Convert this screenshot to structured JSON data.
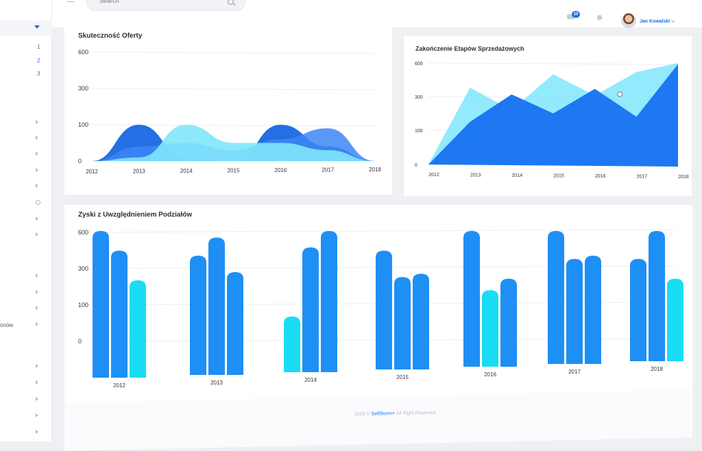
{
  "sidebar": {
    "sub_items": [
      "1",
      "2",
      "3"
    ],
    "partial_label": "onów"
  },
  "topbar": {
    "search_placeholder": "Search",
    "mail_count": "10",
    "user_name": "Jan Kowalski"
  },
  "colors": {
    "accent": "#1e6ff0",
    "bar_blue": "#1e8ff5",
    "bar_cyan": "#19dcf5",
    "area_cyan": "#7fe6fb",
    "area_deep": "#0b5fe0"
  },
  "chart_data": [
    {
      "type": "area",
      "title": "Skuteczność Oferty",
      "x": [
        "2012",
        "2013",
        "2014",
        "2015",
        "2016",
        "2017",
        "2018"
      ],
      "y_ticks": [
        "600",
        "300",
        "100",
        "0"
      ],
      "series": [
        {
          "values": [
            0,
            100,
            10,
            0,
            100,
            40,
            0
          ]
        },
        {
          "values": [
            0,
            40,
            50,
            30,
            60,
            90,
            0
          ]
        },
        {
          "values": [
            0,
            10,
            100,
            50,
            50,
            30,
            0
          ]
        }
      ]
    },
    {
      "type": "area",
      "title": "Zakończenie Etapów Sprzedażowych",
      "x": [
        "2012",
        "2013",
        "2014",
        "2015",
        "2016",
        "2017",
        "2018"
      ],
      "y_ticks": [
        "600",
        "300",
        "100",
        "0"
      ],
      "series": [
        {
          "values": [
            0,
            380,
            220,
            500,
            310,
            520,
            600
          ]
        },
        {
          "values": [
            0,
            150,
            320,
            200,
            370,
            180,
            590
          ]
        }
      ]
    },
    {
      "type": "bar",
      "title": "Zyski z Uwzględnieniem Podziałów",
      "categories": [
        "2012",
        "2013",
        "2014",
        "2015",
        "2016",
        "2017",
        "2018"
      ],
      "y_ticks": [
        "600",
        "300",
        "100",
        "0"
      ],
      "series": [
        {
          "values": [
            600,
            450,
            80,
            480,
            600,
            600,
            430
          ]
        },
        {
          "values": [
            480,
            560,
            500,
            320,
            240,
            430,
            600
          ]
        },
        {
          "values": [
            300,
            350,
            600,
            340,
            310,
            450,
            310
          ]
        }
      ]
    }
  ],
  "footer": {
    "prefix": "2022 ©",
    "brand": "SellStorm+",
    "suffix": "All Right Reserved"
  }
}
